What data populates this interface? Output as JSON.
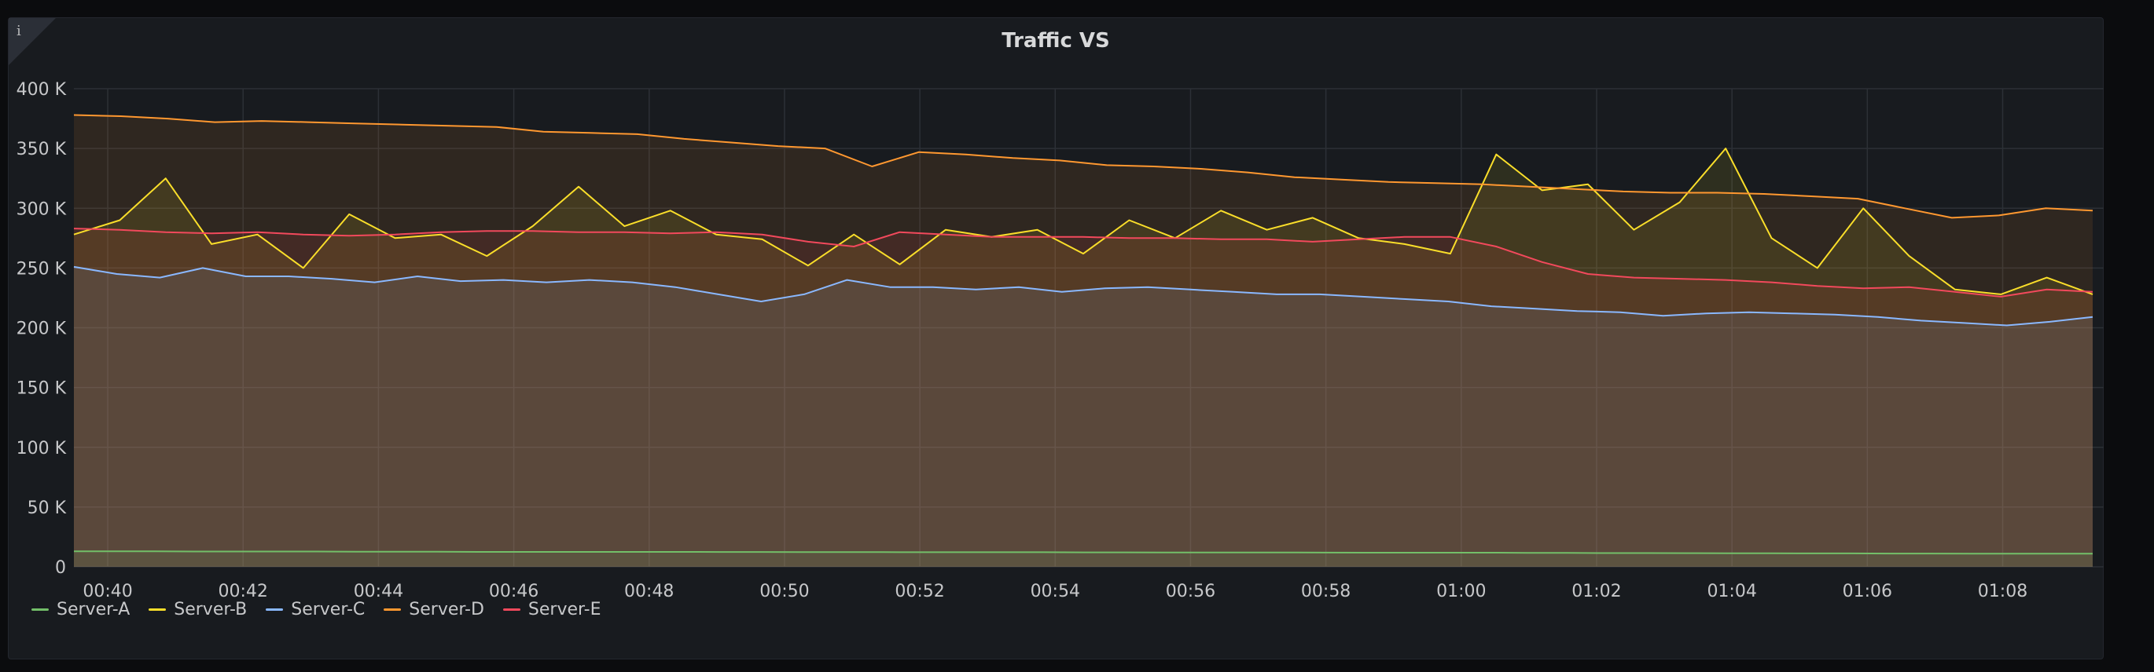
{
  "panel": {
    "title": "Traffic VS",
    "info_glyph": "i"
  },
  "chart_data": {
    "type": "area",
    "title": "Traffic VS",
    "ylim": [
      0,
      400000
    ],
    "yticks": [
      0,
      50000,
      100000,
      150000,
      200000,
      250000,
      300000,
      350000,
      400000
    ],
    "ytick_labels": [
      "0",
      "50 K",
      "100 K",
      "150 K",
      "200 K",
      "250 K",
      "300 K",
      "350 K",
      "400 K"
    ],
    "x_start_min": 39.5,
    "x_end_min": 69.33,
    "xticks": [
      40,
      42,
      44,
      46,
      48,
      50,
      52,
      54,
      56,
      58,
      60,
      62,
      64,
      66,
      68
    ],
    "xtick_labels": [
      "00:40",
      "00:42",
      "00:44",
      "00:46",
      "00:48",
      "00:50",
      "00:52",
      "00:54",
      "00:56",
      "00:58",
      "01:00",
      "01:02",
      "01:04",
      "01:06",
      "01:08"
    ],
    "grid": true,
    "legend_position": "bottom-left",
    "series": [
      {
        "name": "Server-A",
        "color": "#73bf69",
        "values": [
          13000,
          13000,
          13000,
          12800,
          12800,
          12800,
          12800,
          12700,
          12600,
          12600,
          12500,
          12500,
          12500,
          12500,
          12500,
          12500,
          12400,
          12400,
          12300,
          12300,
          12300,
          12200,
          12200,
          12200,
          12200,
          12100,
          12100,
          12000,
          12000,
          12000,
          12000,
          11900,
          11800,
          11800,
          11800,
          11800,
          11700,
          11600,
          11500,
          11500,
          11400,
          11300,
          11300,
          11200,
          11200,
          11100,
          11100,
          11000,
          11000,
          11000,
          11000
        ]
      },
      {
        "name": "Server-B",
        "color": "#fade2a",
        "values": [
          278000,
          290000,
          325000,
          270000,
          278000,
          250000,
          295000,
          275000,
          278000,
          260000,
          285000,
          318000,
          285000,
          298000,
          278000,
          274000,
          252000,
          278000,
          253000,
          282000,
          276000,
          282000,
          262000,
          290000,
          275000,
          298000,
          282000,
          292000,
          275000,
          270000,
          262000,
          345000,
          315000,
          320000,
          282000,
          305000,
          350000,
          275000,
          250000,
          300000,
          260000,
          232000,
          228000,
          242000,
          228000
        ]
      },
      {
        "name": "Server-C",
        "color": "#8ab8ff",
        "values": [
          251000,
          245000,
          242000,
          250000,
          243000,
          243000,
          241000,
          238000,
          243000,
          239000,
          240000,
          238000,
          240000,
          238000,
          234000,
          228000,
          222000,
          228000,
          240000,
          234000,
          234000,
          232000,
          234000,
          230000,
          233000,
          234000,
          232000,
          230000,
          228000,
          228000,
          226000,
          224000,
          222000,
          218000,
          216000,
          214000,
          213000,
          210000,
          212000,
          213000,
          212000,
          211000,
          209000,
          206000,
          204000,
          202000,
          205000,
          209000
        ]
      },
      {
        "name": "Server-D",
        "color": "#ff9830",
        "values": [
          378000,
          377000,
          375000,
          372000,
          373000,
          372000,
          371000,
          370000,
          369000,
          368000,
          364000,
          363000,
          362000,
          358000,
          355000,
          352000,
          350000,
          335000,
          347000,
          345000,
          342000,
          340000,
          336000,
          335000,
          333000,
          330000,
          326000,
          324000,
          322000,
          321000,
          320000,
          318000,
          316000,
          314000,
          313000,
          313000,
          312000,
          310000,
          308000,
          300000,
          292000,
          294000,
          300000,
          298000
        ]
      },
      {
        "name": "Server-E",
        "color": "#f2495c",
        "values": [
          283000,
          282000,
          280000,
          279000,
          280000,
          278000,
          277000,
          278000,
          280000,
          281000,
          281000,
          280000,
          280000,
          279000,
          280000,
          278000,
          272000,
          268000,
          280000,
          278000,
          276000,
          276000,
          276000,
          275000,
          275000,
          274000,
          274000,
          272000,
          274000,
          276000,
          276000,
          268000,
          255000,
          245000,
          242000,
          241000,
          240000,
          238000,
          235000,
          233000,
          234000,
          230000,
          226000,
          232000,
          230000
        ]
      }
    ]
  }
}
